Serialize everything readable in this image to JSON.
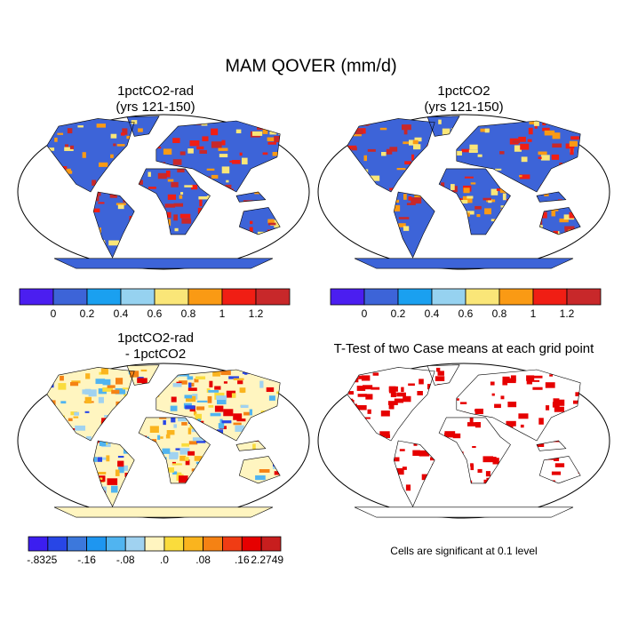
{
  "title": "MAM QOVER (mm/d)",
  "panels": [
    {
      "title": [
        "1pctCO2-rad",
        "(yrs 121-150)"
      ]
    },
    {
      "title": [
        "1pctCO2",
        "(yrs 121-150)"
      ]
    },
    {
      "title": [
        "1pctCO2-rad",
        "- 1pctCO2"
      ]
    },
    {
      "title": [
        "T-Test of two Case means at each grid point"
      ]
    }
  ],
  "colorbars": [
    {
      "labels": [
        "0",
        "0.2",
        "0.4",
        "0.6",
        "0.8",
        "1",
        "1.2"
      ],
      "colors": [
        "#4b1ef0",
        "#3d64d8",
        "#1aa0f0",
        "#96d2f0",
        "#fae678",
        "#fa9a14",
        "#f01e14",
        "#c8282a"
      ]
    },
    {
      "labels": [
        "0",
        "0.2",
        "0.4",
        "0.6",
        "0.8",
        "1",
        "1.2"
      ],
      "colors": [
        "#4b1ef0",
        "#3d64d8",
        "#1aa0f0",
        "#96d2f0",
        "#fae678",
        "#fa9a14",
        "#f01e14",
        "#c8282a"
      ]
    },
    {
      "labels": [
        "-.8325",
        "-.16",
        "-.08",
        ".0",
        ".08",
        ".16",
        "2.2749"
      ],
      "colors": [
        "#3c1ef0",
        "#2846e6",
        "#3c78dc",
        "#1e96f0",
        "#50b4f0",
        "#a0d2f0",
        "#fff5c0",
        "#fadc3c",
        "#fab41e",
        "#f58214",
        "#f03c14",
        "#e60000",
        "#c81e1e"
      ]
    }
  ],
  "note": "Cells are significant at 0.1 level"
}
